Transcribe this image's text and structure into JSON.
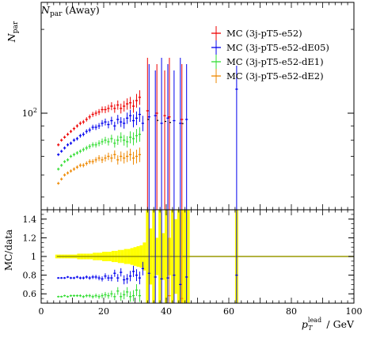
{
  "plot_title": {
    "var": "N",
    "sub": "par",
    "rest": " (Away)"
  },
  "ylabel_top": {
    "var": "N",
    "sub": "par"
  },
  "ylabel_ratio": "MC/data",
  "xlabel": {
    "var": "p",
    "sub": "T",
    "sup": "lead",
    "rest": " / GeV"
  },
  "colors": {
    "s0": "#ee0000",
    "s1": "#0000ee",
    "s2": "#33dd33",
    "s3": "#ee8800",
    "band": "#ffff00",
    "band_line": "#999900"
  },
  "chart_data": [
    {
      "type": "scatter",
      "title": "",
      "ylabel": "N_par",
      "xlim": [
        0,
        100
      ],
      "ylim": [
        45,
        250
      ],
      "yscale": "log",
      "y_ticks": [
        {
          "value": 100,
          "label": "10",
          "exp": "2"
        }
      ],
      "legend_position": "top-right",
      "series": [
        {
          "name": "MC (3j-pT5-e52)",
          "color_key": "s0",
          "x": [
            5.5,
            6.5,
            7.5,
            8.5,
            9.5,
            10.5,
            11.5,
            12.5,
            13.5,
            14.5,
            15.5,
            16.5,
            17.5,
            18.5,
            19.5,
            20.5,
            21.5,
            22.5,
            23.5,
            24.5,
            25.5,
            26.5,
            27.5,
            28.5,
            29.5,
            30.5,
            31.5
          ],
          "y": [
            77,
            80,
            82,
            84,
            86,
            88,
            90,
            92,
            93,
            95,
            97,
            99,
            100,
            101,
            103,
            103,
            104,
            106,
            104,
            107,
            104,
            106,
            108,
            109,
            106,
            111,
            114
          ]
        },
        {
          "name": "MC (3j-pT5-e52-dE05)",
          "color_key": "s1",
          "x": [
            5.5,
            6.5,
            7.5,
            8.5,
            9.5,
            10.5,
            11.5,
            12.5,
            13.5,
            14.5,
            15.5,
            16.5,
            17.5,
            18.5,
            19.5,
            20.5,
            21.5,
            22.5,
            23.5,
            24.5,
            25.5,
            26.5,
            27.5,
            28.5,
            29.5,
            30.5,
            31.5,
            32.5,
            34.5,
            36.5,
            38.5,
            40.5,
            42.5,
            44.5,
            46.5,
            62.5
          ],
          "y": [
            71,
            73,
            75,
            77,
            78,
            80,
            81,
            83,
            84,
            86,
            87,
            89,
            89,
            90,
            92,
            93,
            91,
            94,
            90,
            95,
            93,
            92,
            96,
            98,
            94,
            96,
            99,
            92,
            97,
            98,
            92,
            96,
            94,
            92,
            95,
            122
          ]
        },
        {
          "name": "MC (3j-pT5-e52-dE1)",
          "color_key": "s2",
          "x": [
            5.5,
            6.5,
            7.5,
            8.5,
            9.5,
            10.5,
            11.5,
            12.5,
            13.5,
            14.5,
            15.5,
            16.5,
            17.5,
            18.5,
            19.5,
            20.5,
            21.5,
            22.5,
            23.5,
            24.5,
            25.5,
            26.5,
            27.5,
            28.5,
            29.5,
            30.5,
            31.5
          ],
          "y": [
            63,
            65,
            67,
            68,
            70,
            71,
            72,
            73,
            74,
            75,
            76,
            77,
            77,
            78,
            79,
            80,
            79,
            81,
            78,
            80,
            82,
            80,
            79,
            82,
            81,
            83,
            84
          ]
        },
        {
          "name": "MC (3j-pT5-e52-dE2)",
          "color_key": "s3",
          "x": [
            5.5,
            6.5,
            7.5,
            8.5,
            9.5,
            10.5,
            11.5,
            12.5,
            13.5,
            14.5,
            15.5,
            16.5,
            17.5,
            18.5,
            19.5,
            20.5,
            21.5,
            22.5,
            23.5,
            24.5,
            25.5,
            26.5,
            27.5,
            28.5,
            29.5,
            30.5,
            31.5
          ],
          "y": [
            56,
            58,
            60,
            61,
            62,
            63,
            64,
            65,
            65,
            66,
            67,
            67,
            68,
            69,
            68,
            69,
            70,
            69,
            71,
            68,
            70,
            69,
            70,
            71,
            69,
            70,
            71
          ]
        },
        {
          "name": "",
          "color_key": "s0",
          "x": [
            34.0,
            37.0,
            39.5,
            41.0,
            45.0
          ],
          "y": [
            102,
            100,
            98,
            97,
            95
          ]
        }
      ]
    },
    {
      "type": "scatter",
      "title": "",
      "xlabel": "p_T^lead / GeV",
      "ylabel": "MC/data",
      "xlim": [
        0,
        100
      ],
      "ylim": [
        0.5,
        1.5
      ],
      "x_ticks": [
        0,
        20,
        40,
        60,
        80,
        100
      ],
      "y_ticks": [
        0.6,
        0.8,
        1,
        1.2,
        1.4
      ],
      "reference_line": 1,
      "band": {
        "x": [
          5,
          6,
          7,
          8,
          9,
          10,
          11,
          12,
          13,
          14,
          15,
          16,
          17,
          18,
          19,
          20,
          21,
          22,
          23,
          24,
          25,
          26,
          27,
          28,
          29,
          30,
          31,
          32,
          33,
          34,
          35,
          36,
          37,
          38,
          39,
          40,
          41,
          42,
          43,
          44,
          45,
          46,
          47
        ],
        "half_width": [
          0.02,
          0.02,
          0.02,
          0.02,
          0.02,
          0.02,
          0.02,
          0.03,
          0.03,
          0.03,
          0.03,
          0.03,
          0.04,
          0.04,
          0.04,
          0.05,
          0.05,
          0.05,
          0.06,
          0.06,
          0.07,
          0.07,
          0.08,
          0.08,
          0.09,
          0.1,
          0.11,
          0.12,
          0.15,
          0.5,
          0.3,
          0.5,
          0.2,
          0.5,
          0.25,
          0.5,
          0.2,
          0.5,
          0.4,
          0.5,
          0.5,
          0.5,
          0.5
        ]
      },
      "band_spike": {
        "x": [
          62,
          63
        ],
        "half_width": 0.5
      },
      "series": [
        {
          "name": "MC (3j-pT5-e52-dE05)",
          "color_key": "s1",
          "x": [
            5.5,
            6.5,
            7.5,
            8.5,
            9.5,
            10.5,
            11.5,
            12.5,
            13.5,
            14.5,
            15.5,
            16.5,
            17.5,
            18.5,
            19.5,
            20.5,
            21.5,
            22.5,
            23.5,
            24.5,
            25.5,
            26.5,
            27.5,
            28.5,
            29.5,
            30.5,
            31.5,
            32.5,
            34.5,
            36.5,
            38.5,
            40.5,
            42.5,
            44.5,
            46.5,
            62.5
          ],
          "y": [
            0.77,
            0.77,
            0.77,
            0.78,
            0.77,
            0.77,
            0.78,
            0.77,
            0.77,
            0.78,
            0.77,
            0.78,
            0.78,
            0.77,
            0.76,
            0.79,
            0.77,
            0.77,
            0.82,
            0.77,
            0.83,
            0.75,
            0.76,
            0.79,
            0.84,
            0.8,
            0.77,
            0.87,
            0.82,
            0.78,
            0.76,
            0.77,
            0.8,
            0.7,
            0.78,
            0.8
          ]
        },
        {
          "name": "MC (3j-pT5-e52-dE1)",
          "color_key": "s2",
          "x": [
            5.5,
            6.5,
            7.5,
            8.5,
            9.5,
            10.5,
            11.5,
            12.5,
            13.5,
            14.5,
            15.5,
            16.5,
            17.5,
            18.5,
            19.5,
            20.5,
            21.5,
            22.5,
            23.5,
            24.5,
            25.5,
            26.5,
            27.5,
            28.5,
            29.5,
            30.5,
            31.5
          ],
          "y": [
            0.57,
            0.57,
            0.58,
            0.57,
            0.58,
            0.58,
            0.58,
            0.58,
            0.57,
            0.58,
            0.58,
            0.57,
            0.58,
            0.57,
            0.58,
            0.59,
            0.58,
            0.6,
            0.57,
            0.63,
            0.57,
            0.59,
            0.62,
            0.57,
            0.58,
            0.64,
            0.58
          ]
        },
        {
          "name": "",
          "color_key": "s3",
          "x": [
            41.0,
            45.0
          ],
          "y": [
            0.58,
            0.55
          ]
        }
      ]
    }
  ]
}
